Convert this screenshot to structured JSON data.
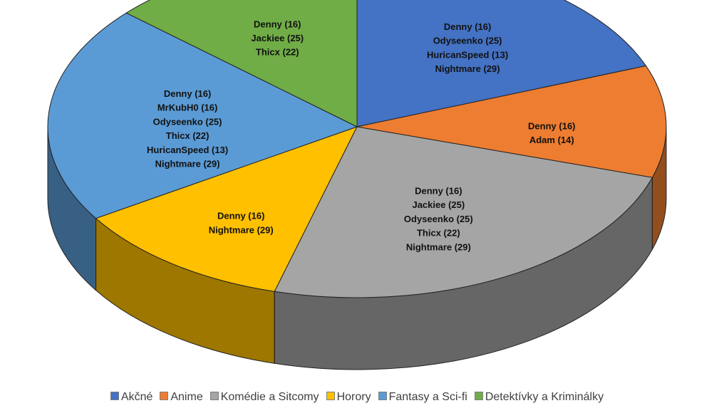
{
  "chart_data": {
    "type": "pie",
    "three_d": true,
    "legend_position": "bottom",
    "start_angle_deg": 0,
    "direction": "clockwise",
    "slices": [
      {
        "name": "Akčné",
        "value": 19.2,
        "color": "#4472C4",
        "labels": [
          "Denny (16)",
          "Odyseenko (25)",
          "HuricanSpeed (13)",
          "Nightmare (29)"
        ]
      },
      {
        "name": "Anime",
        "value": 10.6,
        "color": "#ED7D31",
        "labels": [
          "Denny (16)",
          "Adam (14)"
        ]
      },
      {
        "name": "Komédie a Sitcomy",
        "value": 24.5,
        "color": "#A5A5A5",
        "labels": [
          "Denny (16)",
          "Jackiee (25)",
          "Odyseenko (25)",
          "Thicx (22)",
          "Nightmare (29)"
        ]
      },
      {
        "name": "Horory",
        "value": 11.7,
        "color": "#FFC000",
        "labels": [
          "Denny (16)",
          "Nightmare (29)"
        ]
      },
      {
        "name": "Fantasy a Sci-fi",
        "value": 20.6,
        "color": "#5B9BD5",
        "labels": [
          "Denny (16)",
          "MrKubH0 (16)",
          "Odyseenko (25)",
          "Thicx (22)",
          "HuricanSpeed (13)",
          "Nightmare (29)"
        ]
      },
      {
        "name": "Detektívky a Kriminálky",
        "value": 13.4,
        "color": "#70AD47",
        "labels": [
          "Denny (16)",
          "Jackiee (25)",
          "Thicx (22)"
        ]
      }
    ]
  }
}
